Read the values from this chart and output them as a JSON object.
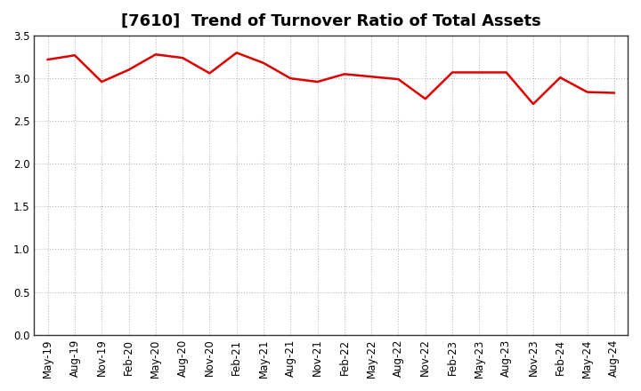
{
  "title": "[7610]  Trend of Turnover Ratio of Total Assets",
  "x_labels": [
    "May-19",
    "Aug-19",
    "Nov-19",
    "Feb-20",
    "May-20",
    "Aug-20",
    "Nov-20",
    "Feb-21",
    "May-21",
    "Aug-21",
    "Nov-21",
    "Feb-22",
    "May-22",
    "Aug-22",
    "Nov-22",
    "Feb-23",
    "May-23",
    "Aug-23",
    "Nov-23",
    "Feb-24",
    "May-24",
    "Aug-24"
  ],
  "values": [
    3.22,
    3.27,
    2.96,
    3.1,
    3.28,
    3.24,
    3.06,
    3.3,
    3.18,
    3.0,
    2.96,
    3.05,
    3.02,
    2.99,
    2.76,
    3.07,
    3.07,
    3.07,
    2.7,
    3.01,
    2.84,
    2.83
  ],
  "line_color": "#dd0000",
  "background_color": "#ffffff",
  "plot_bg_color": "#ffffff",
  "ylim": [
    0.0,
    3.5
  ],
  "yticks": [
    0.0,
    0.5,
    1.0,
    1.5,
    2.0,
    2.5,
    3.0,
    3.5
  ],
  "grid_color": "#bbbbbb",
  "title_fontsize": 13,
  "tick_fontsize": 8.5,
  "line_width": 1.8,
  "spine_color": "#333333"
}
